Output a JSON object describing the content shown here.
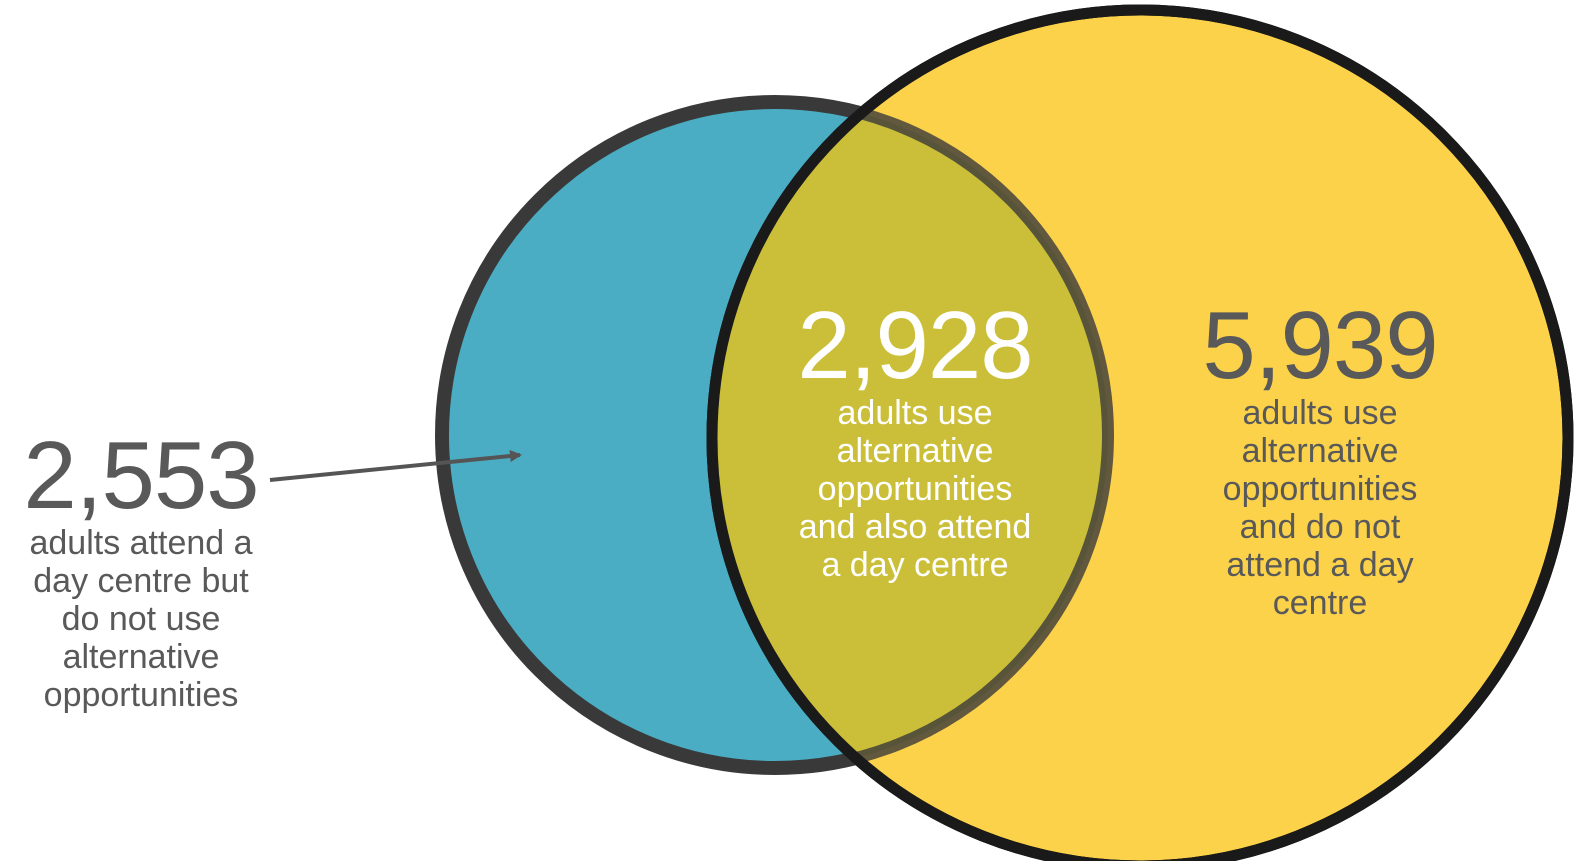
{
  "colors": {
    "blue_circle": "#4BADC3",
    "yellow_circle": "#FCD24A",
    "overlap": "#CBBF39",
    "outline_dark": "#3A3A3A",
    "outline_black": "#000000",
    "text_gray": "#595959",
    "text_white": "#FFFFFF"
  },
  "sets": [
    {
      "id": "day_centre_only",
      "value": "2,553",
      "description": "adults attend a\nday centre but\ndo not use\nalternative\nopportunities"
    },
    {
      "id": "both",
      "value": "2,928",
      "description": "adults use\nalternative\nopportunities\nand also attend\na day centre"
    },
    {
      "id": "alternative_only",
      "value": "5,939",
      "description": "adults use\nalternative\nopportunities\nand do not\nattend a day\ncentre"
    }
  ]
}
